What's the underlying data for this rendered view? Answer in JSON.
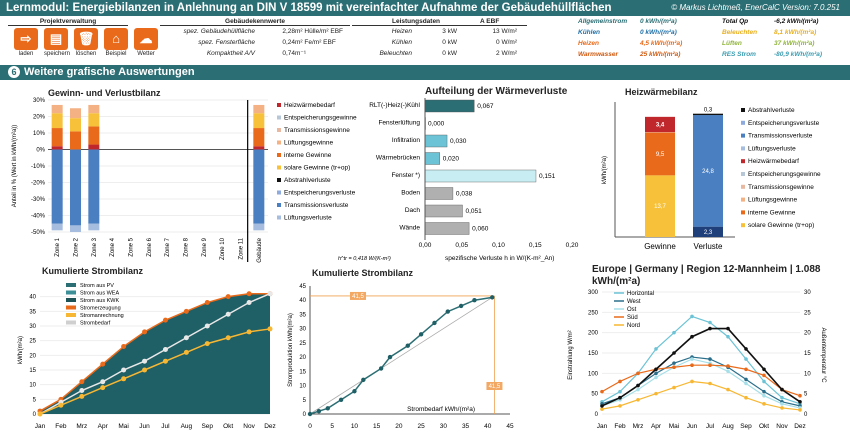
{
  "title": "Lernmodul: Energiebilanzen in Anlehnung an DIN V 18599 mit vereinfachter Aufnahme der Gebäudehüllflächen",
  "copyright": "© Markus Lichtmeß, EnerCalC Version: 7.0.251",
  "toolbar": {
    "header": "Projektverwaltung",
    "buttons": [
      {
        "label": "laden",
        "icon": "folder-icon"
      },
      {
        "label": "speichern",
        "icon": "save-icon"
      },
      {
        "label": "löschen",
        "icon": "trash-icon"
      },
      {
        "label": "Beispiel",
        "icon": "home-icon"
      },
      {
        "label": "Wetter",
        "icon": "cloud-icon"
      }
    ]
  },
  "kennwerte": {
    "header": "Gebäudekennwerte",
    "rows": [
      {
        "label": "spez. Gebäudehüllfläche",
        "value": "2,28",
        "unit": "m² Hülle/m² EBF"
      },
      {
        "label": "spez. Fensterfläche",
        "value": "0,24",
        "unit": "m² Fe/m² EBF"
      },
      {
        "label": "Kompaktheit A/V",
        "value": "0,74",
        "unit": "m⁻¹"
      }
    ]
  },
  "leistung": {
    "header": "Leistungsdaten",
    "header2": "A EBF",
    "rows": [
      {
        "label": "Heizen",
        "value": "3 kW",
        "per": "13 W/m²"
      },
      {
        "label": "Kühlen",
        "value": "0 kW",
        "per": "0 W/m²"
      },
      {
        "label": "Beleuchten",
        "value": "0 kW",
        "per": "2 W/m²"
      }
    ]
  },
  "summary": {
    "rows": [
      {
        "label": "Allgemeinstrom",
        "value": "0 kWh/(m²a)",
        "color": "#2b6e74"
      },
      {
        "label": "Kühlen",
        "value": "0 kWh/(m²a)",
        "color": "#1f6fa8"
      },
      {
        "label": "Heizen",
        "value": "4,5 kWh/(m²a)",
        "color": "#e96a1a"
      },
      {
        "label": "Warmwasser",
        "value": "25 kWh/(m²a)",
        "color": "#d05a10"
      }
    ],
    "rows2": [
      {
        "label": "Total Qp",
        "value": "-6,2 kWh/(m²a)",
        "color": "#111"
      },
      {
        "label": "Beleuchten",
        "value": "8,1 kWh/(m²a)",
        "color": "#e8b020"
      },
      {
        "label": "Lüften",
        "value": "37 kWh/(m²a)",
        "color": "#8fb33a"
      },
      {
        "label": "RES Strom",
        "value": "-80,9 kWh/(m²a)",
        "color": "#3a9cb0"
      }
    ]
  },
  "section": {
    "num": "6",
    "title": "Weitere grafische Auswertungen"
  },
  "bilanz": {
    "title": "Gewinn- und Verlustbilanz",
    "ylabel": "Anteil in % (Wert in kWh/(m²a))",
    "zones": [
      "Zone 1",
      "Zone 2",
      "Zone 3",
      "Zone 4",
      "Zone 5",
      "Zone 6",
      "Zone 7",
      "Zone 8",
      "Zone 9",
      "Zone 10",
      "Zone 11",
      "Gebäude"
    ],
    "yticks": [
      "30%",
      "20%",
      "10%",
      "0%",
      "-10%",
      "-20%",
      "-30%",
      "-40%",
      "-50%"
    ],
    "legend": [
      {
        "label": "Heizwärmebedarf",
        "color": "#c0272d"
      },
      {
        "label": "Entspeicherungsgewinne",
        "color": "#b8c7d8"
      },
      {
        "label": "Transmissionsgewinne",
        "color": "#e8b8a0"
      },
      {
        "label": "Lüftungsgewinne",
        "color": "#f4b183"
      },
      {
        "label": "interne Gewinne",
        "color": "#e96a1a"
      },
      {
        "label": "solare Gewinne (tr+op)",
        "color": "#f7c23a"
      },
      {
        "label": "Abstrahlverluste",
        "color": "#111"
      },
      {
        "label": "Entspeicherungsverluste",
        "color": "#8faadc"
      },
      {
        "label": "Transmissionsverluste",
        "color": "#4a7fc1"
      },
      {
        "label": "Lüftungsverluste",
        "color": "#a6bde0"
      }
    ]
  },
  "waerme": {
    "title": "Aufteilung der Wärmeverluste",
    "xlabel": "spezifische Verluste h in W/(K-m²_An)",
    "note": "h^tr = 0,418 W/(K-m²)",
    "xticks": [
      "0,00",
      "0,05",
      "0,10",
      "0,15",
      "0,20"
    ]
  },
  "heizbilanz": {
    "title": "Heizwärmebilanz",
    "ylabel": "kWh/(m²a)",
    "cats": [
      "Gewinne",
      "Verluste"
    ],
    "legend": [
      {
        "label": "Abstrahlverluste",
        "color": "#111"
      },
      {
        "label": "Entspeicherungsverluste",
        "color": "#8faadc"
      },
      {
        "label": "Transmissionsverluste",
        "color": "#4a7fc1"
      },
      {
        "label": "Lüftungsverluste",
        "color": "#a6bde0"
      },
      {
        "label": "Heizwärmebedarf",
        "color": "#c0272d"
      },
      {
        "label": "Entspeicherungsgewinne",
        "color": "#b8c7d8"
      },
      {
        "label": "Transmissionsgewinne",
        "color": "#e8b8a0"
      },
      {
        "label": "Lüftungsgewinne",
        "color": "#f4b183"
      },
      {
        "label": "interne Gewinne",
        "color": "#e96a1a"
      },
      {
        "label": "solare Gewinne (tr+op)",
        "color": "#f7c23a"
      }
    ]
  },
  "strom1": {
    "title": "Kumulierte Strombilanz",
    "ylabel": "kWh/(m²a)",
    "legend": [
      {
        "label": "Strom aus PV",
        "color": "#2b6e74"
      },
      {
        "label": "Strom aus WEA",
        "color": "#3d8f97"
      },
      {
        "label": "Strom aus KWK",
        "color": "#1d5257"
      },
      {
        "label": "Stromerzeugung",
        "color": "#e96a1a"
      },
      {
        "label": "Stromanrechnung",
        "color": "#f7b733"
      },
      {
        "label": "Strombedarf",
        "color": "#cfcfcf"
      }
    ]
  },
  "strom2": {
    "title": "Kumulierte Strombilanz",
    "ylabel": "Stromproduktion kWh/(m²a)",
    "xlabel": "Strombedarf kWh/(m²a)",
    "marker": "41,5"
  },
  "klima": {
    "title": "Europe | Germany | Region 12-Mannheim | 1.088 kWh/(m²a)",
    "ylabel": "Einstrahlung W/m²",
    "y2label": "Außentemperatur °C",
    "legend": [
      {
        "label": "Horizontal",
        "color": "#6cc3d5"
      },
      {
        "label": "West",
        "color": "#2a6e8a"
      },
      {
        "label": "Ost",
        "color": "#a6dfe8"
      },
      {
        "label": "Süd",
        "color": "#e96a1a"
      },
      {
        "label": "Nord",
        "color": "#f7b733"
      }
    ]
  },
  "chart_data": [
    {
      "type": "bar",
      "title": "Gewinn- und Verlustbilanz",
      "categories": [
        "Zone 1",
        "Zone 2",
        "Zone 3",
        "Gebäude"
      ],
      "series": [
        {
          "name": "Heizwärmebedarf",
          "values": [
            2,
            0,
            3,
            2
          ]
        },
        {
          "name": "interne Gewinne",
          "values": [
            11,
            11,
            11,
            11
          ]
        },
        {
          "name": "solare Gewinne (tr+op)",
          "values": [
            9,
            8,
            8,
            9
          ]
        },
        {
          "name": "Lüftungsgewinne",
          "values": [
            5,
            6,
            5,
            5
          ]
        },
        {
          "name": "Transmissionsverluste",
          "values": [
            -45,
            -46,
            -45,
            -45
          ]
        },
        {
          "name": "Lüftungsverluste",
          "values": [
            -4,
            -4,
            -4,
            -4
          ]
        }
      ],
      "ylim": [
        -50,
        30
      ]
    },
    {
      "type": "bar",
      "title": "Aufteilung der Wärmeverluste",
      "categories": [
        "RLT(-)Heiz(-)Kühl",
        "Fensterlüftung",
        "Infiltration",
        "Wärmebrücken",
        "Fenster *)",
        "Boden",
        "Dach",
        "Wände"
      ],
      "values": [
        0.067,
        0.0,
        0.03,
        0.02,
        0.151,
        0.038,
        0.051,
        0.06
      ],
      "xlim": [
        0,
        0.2
      ]
    },
    {
      "type": "bar",
      "title": "Heizwärmebilanz",
      "categories": [
        "Gewinne",
        "Verluste"
      ],
      "series": [
        {
          "name": "solare Gewinne (tr+op)",
          "values": [
            13.7,
            0
          ]
        },
        {
          "name": "interne Gewinne",
          "values": [
            9.5,
            0
          ]
        },
        {
          "name": "Lüftungsgewinne",
          "values": [
            0.1,
            0
          ]
        },
        {
          "name": "Heizwärmebedarf",
          "values": [
            3.4,
            0
          ]
        },
        {
          "name": "Lüftungsverluste",
          "values": [
            0,
            2.3
          ]
        },
        {
          "name": "Transmissionsverluste",
          "values": [
            0,
            24.8
          ]
        },
        {
          "name": "Abstrahlverluste",
          "values": [
            0,
            0.3
          ]
        }
      ],
      "ylim": [
        0,
        30
      ]
    },
    {
      "type": "area",
      "title": "Kumulierte Strombilanz",
      "categories": [
        "Jan",
        "Feb",
        "Mrz",
        "Apr",
        "Mai",
        "Jun",
        "Jul",
        "Aug",
        "Sep",
        "Okt",
        "Nov",
        "Dez"
      ],
      "series": [
        {
          "name": "Stromerzeugung",
          "values": [
            1,
            5,
            11,
            17,
            23,
            28,
            32,
            35,
            38,
            40,
            41,
            41
          ]
        },
        {
          "name": "Strombedarf",
          "values": [
            0,
            4,
            8,
            11,
            15,
            18,
            22,
            26,
            30,
            34,
            38,
            41
          ]
        },
        {
          "name": "Stromanrechnung",
          "values": [
            0,
            3,
            6,
            9,
            12,
            15,
            18,
            21,
            24,
            26,
            28,
            29
          ]
        }
      ],
      "ylim": [
        0,
        45
      ]
    },
    {
      "type": "line",
      "title": "Kumulierte Strombilanz",
      "x": [
        0,
        2,
        4,
        7,
        10,
        12,
        16,
        18,
        22,
        25,
        28,
        31,
        34,
        37,
        41
      ],
      "series": [
        {
          "name": "Stromproduktion",
          "values": [
            0,
            1,
            2,
            5,
            8,
            12,
            16,
            20,
            24,
            28,
            32,
            36,
            38,
            40,
            41
          ]
        }
      ],
      "xlim": [
        0,
        45
      ],
      "ylim": [
        0,
        45
      ]
    },
    {
      "type": "line",
      "title": "Europe | Germany | Region 12-Mannheim | 1.088 kWh/(m²a)",
      "categories": [
        "Jan",
        "Feb",
        "Mrz",
        "Apr",
        "Mai",
        "Jun",
        "Jul",
        "Aug",
        "Sep",
        "Okt",
        "Nov",
        "Dez"
      ],
      "series": [
        {
          "name": "Horizontal",
          "values": [
            30,
            55,
            100,
            160,
            200,
            240,
            225,
            190,
            135,
            80,
            40,
            25
          ]
        },
        {
          "name": "West",
          "values": [
            25,
            40,
            70,
            100,
            125,
            140,
            135,
            115,
            85,
            55,
            30,
            20
          ]
        },
        {
          "name": "Ost",
          "values": [
            20,
            35,
            60,
            90,
            115,
            135,
            125,
            105,
            75,
            45,
            25,
            15
          ]
        },
        {
          "name": "Süd",
          "values": [
            55,
            80,
            100,
            110,
            115,
            120,
            120,
            118,
            110,
            95,
            60,
            45
          ]
        },
        {
          "name": "Nord",
          "values": [
            12,
            20,
            35,
            50,
            65,
            80,
            75,
            60,
            40,
            25,
            15,
            10
          ]
        },
        {
          "name": "Außentemperatur",
          "values": [
            2,
            4,
            7,
            11,
            15,
            19,
            21,
            21,
            16,
            11,
            6,
            3
          ]
        }
      ],
      "ylim": [
        0,
        300
      ]
    }
  ]
}
